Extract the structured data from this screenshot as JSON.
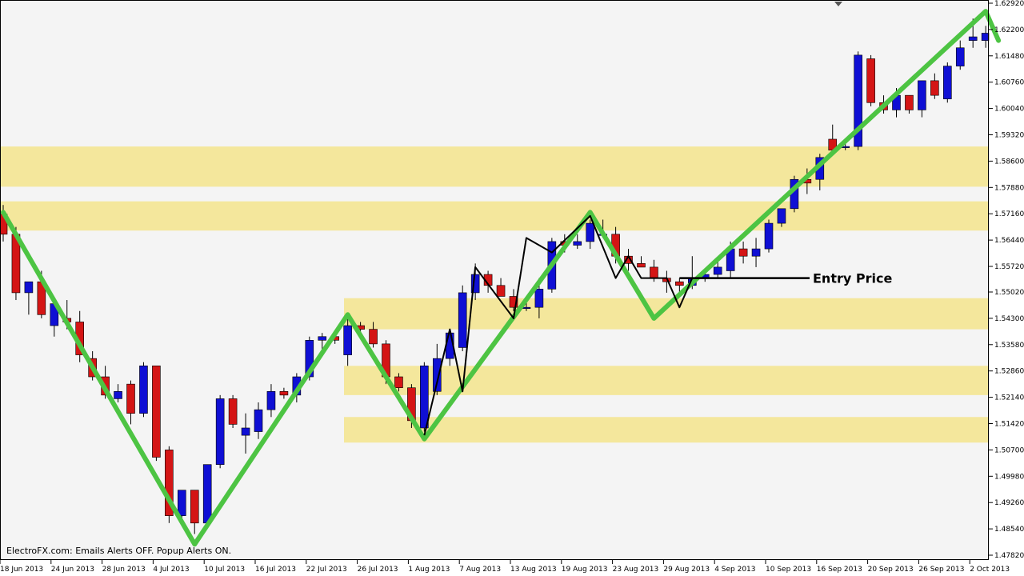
{
  "footer_text": "ElectroFX.com:  Emails Alerts OFF.  Popup Alerts ON.",
  "colors": {
    "bull": "#0f0fd4",
    "bear": "#d41515",
    "zigzag": "#4dc443",
    "zone": "#f4e79c",
    "background": "#f4f4f4"
  },
  "chart_data": {
    "type": "candlestick",
    "title": "",
    "ylim": [
      1.4782,
      1.6292
    ],
    "price_ticks": [
      "1.62920",
      "1.62200",
      "1.61480",
      "1.60760",
      "1.60040",
      "1.59320",
      "1.58600",
      "1.57880",
      "1.57160",
      "1.56440",
      "1.55720",
      "1.55020",
      "1.54300",
      "1.53580",
      "1.52860",
      "1.52140",
      "1.51420",
      "1.50700",
      "1.49980",
      "1.49260",
      "1.48540",
      "1.47820"
    ],
    "date_ticks": [
      {
        "label": "18 Jun 2013",
        "i": 0
      },
      {
        "label": "24 Jun 2013",
        "i": 4
      },
      {
        "label": "28 Jun 2013",
        "i": 8
      },
      {
        "label": "4 Jul 2013",
        "i": 12
      },
      {
        "label": "10 Jul 2013",
        "i": 16
      },
      {
        "label": "16 Jul 2013",
        "i": 20
      },
      {
        "label": "22 Jul 2013",
        "i": 24
      },
      {
        "label": "26 Jul 2013",
        "i": 28
      },
      {
        "label": "1 Aug 2013",
        "i": 32
      },
      {
        "label": "7 Aug 2013",
        "i": 36
      },
      {
        "label": "13 Aug 2013",
        "i": 40
      },
      {
        "label": "19 Aug 2013",
        "i": 44
      },
      {
        "label": "23 Aug 2013",
        "i": 48
      },
      {
        "label": "29 Aug 2013",
        "i": 52
      },
      {
        "label": "4 Sep 2013",
        "i": 56
      },
      {
        "label": "10 Sep 2013",
        "i": 60
      },
      {
        "label": "16 Sep 2013",
        "i": 64
      },
      {
        "label": "20 Sep 2013",
        "i": 68
      },
      {
        "label": "26 Sep 2013",
        "i": 72
      },
      {
        "label": "2 Oct 2013",
        "i": 76
      }
    ],
    "candles": [
      [
        1.5715,
        1.574,
        1.564,
        1.566
      ],
      [
        1.566,
        1.568,
        1.548,
        1.55
      ],
      [
        1.55,
        1.553,
        1.544,
        1.553
      ],
      [
        1.553,
        1.556,
        1.543,
        1.544
      ],
      [
        1.541,
        1.547,
        1.538,
        1.547
      ],
      [
        1.543,
        1.548,
        1.54,
        1.542
      ],
      [
        1.542,
        1.545,
        1.531,
        1.533
      ],
      [
        1.532,
        1.534,
        1.526,
        1.527
      ],
      [
        1.527,
        1.53,
        1.521,
        1.522
      ],
      [
        1.521,
        1.525,
        1.52,
        1.523
      ],
      [
        1.525,
        1.526,
        1.514,
        1.517
      ],
      [
        1.517,
        1.531,
        1.516,
        1.53
      ],
      [
        1.53,
        1.53,
        1.504,
        1.505
      ],
      [
        1.507,
        1.508,
        1.487,
        1.489
      ],
      [
        1.489,
        1.495,
        1.487,
        1.496
      ],
      [
        1.496,
        1.496,
        1.484,
        1.487
      ],
      [
        1.487,
        1.503,
        1.486,
        1.503
      ],
      [
        1.503,
        1.522,
        1.502,
        1.521
      ],
      [
        1.521,
        1.522,
        1.513,
        1.514
      ],
      [
        1.511,
        1.517,
        1.506,
        1.513
      ],
      [
        1.512,
        1.52,
        1.51,
        1.518
      ],
      [
        1.518,
        1.525,
        1.516,
        1.523
      ],
      [
        1.523,
        1.524,
        1.521,
        1.522
      ],
      [
        1.522,
        1.528,
        1.52,
        1.527
      ],
      [
        1.527,
        1.538,
        1.526,
        1.537
      ],
      [
        1.537,
        1.539,
        1.534,
        1.538
      ],
      [
        1.538,
        1.539,
        1.536,
        1.537
      ],
      [
        1.533,
        1.543,
        1.53,
        1.541
      ],
      [
        1.541,
        1.542,
        1.538,
        1.54
      ],
      [
        1.54,
        1.542,
        1.535,
        1.536
      ],
      [
        1.536,
        1.537,
        1.525,
        1.527
      ],
      [
        1.527,
        1.528,
        1.523,
        1.524
      ],
      [
        1.524,
        1.525,
        1.513,
        1.515
      ],
      [
        1.513,
        1.531,
        1.512,
        1.53
      ],
      [
        1.523,
        1.536,
        1.522,
        1.532
      ],
      [
        1.532,
        1.54,
        1.53,
        1.539
      ],
      [
        1.535,
        1.552,
        1.534,
        1.55
      ],
      [
        1.55,
        1.558,
        1.548,
        1.555
      ],
      [
        1.555,
        1.556,
        1.55,
        1.552
      ],
      [
        1.552,
        1.554,
        1.549,
        1.549
      ],
      [
        1.549,
        1.551,
        1.545,
        1.546
      ],
      [
        1.546,
        1.548,
        1.545,
        1.546
      ],
      [
        1.546,
        1.554,
        1.543,
        1.551
      ],
      [
        1.551,
        1.565,
        1.55,
        1.564
      ],
      [
        1.564,
        1.566,
        1.561,
        1.563
      ],
      [
        1.563,
        1.566,
        1.562,
        1.564
      ],
      [
        1.564,
        1.57,
        1.562,
        1.569
      ],
      [
        1.566,
        1.57,
        1.565,
        1.566
      ],
      [
        1.566,
        1.568,
        1.558,
        1.56
      ],
      [
        1.56,
        1.562,
        1.556,
        1.558
      ],
      [
        1.558,
        1.56,
        1.557,
        1.557
      ],
      [
        1.557,
        1.559,
        1.553,
        1.554
      ],
      [
        1.554,
        1.556,
        1.55,
        1.553
      ],
      [
        1.553,
        1.554,
        1.55,
        1.552
      ],
      [
        1.552,
        1.56,
        1.551,
        1.554
      ],
      [
        1.554,
        1.556,
        1.553,
        1.555
      ],
      [
        1.555,
        1.559,
        1.554,
        1.557
      ],
      [
        1.556,
        1.564,
        1.554,
        1.562
      ],
      [
        1.562,
        1.564,
        1.558,
        1.56
      ],
      [
        1.56,
        1.565,
        1.557,
        1.562
      ],
      [
        1.562,
        1.57,
        1.561,
        1.569
      ],
      [
        1.569,
        1.573,
        1.568,
        1.573
      ],
      [
        1.573,
        1.582,
        1.572,
        1.581
      ],
      [
        1.581,
        1.584,
        1.577,
        1.58
      ],
      [
        1.581,
        1.588,
        1.578,
        1.587
      ],
      [
        1.592,
        1.596,
        1.589,
        1.589
      ],
      [
        1.59,
        1.592,
        1.589,
        1.59
      ],
      [
        1.59,
        1.616,
        1.589,
        1.615
      ],
      [
        1.614,
        1.615,
        1.601,
        1.602
      ],
      [
        1.602,
        1.604,
        1.599,
        1.6
      ],
      [
        1.6,
        1.606,
        1.598,
        1.604
      ],
      [
        1.604,
        1.604,
        1.599,
        1.6
      ],
      [
        1.6,
        1.608,
        1.598,
        1.608
      ],
      [
        1.608,
        1.61,
        1.603,
        1.604
      ],
      [
        1.603,
        1.613,
        1.602,
        1.612
      ],
      [
        1.612,
        1.619,
        1.611,
        1.617
      ],
      [
        1.619,
        1.625,
        1.617,
        1.62
      ],
      [
        1.619,
        1.623,
        1.617,
        1.621
      ],
      [
        1.622,
        1.625,
        1.617,
        1.62
      ]
    ],
    "zones": [
      [
        1.579,
        1.59
      ],
      [
        1.567,
        1.575
      ],
      [
        1.54,
        1.5485
      ],
      [
        1.522,
        1.53
      ],
      [
        1.509,
        1.516
      ]
    ],
    "zigzag_main": [
      [
        0,
        1.572
      ],
      [
        15,
        1.4812
      ],
      [
        27,
        1.544
      ],
      [
        33,
        1.51
      ],
      [
        46,
        1.572
      ],
      [
        51,
        1.543
      ],
      [
        77,
        1.627
      ],
      [
        78,
        1.619
      ]
    ],
    "zigzag_small": [
      [
        33,
        1.511
      ],
      [
        35,
        1.54
      ],
      [
        36,
        1.523
      ],
      [
        37,
        1.557
      ],
      [
        40,
        1.543
      ],
      [
        41,
        1.565
      ],
      [
        43,
        1.561
      ],
      [
        46,
        1.571
      ],
      [
        48,
        1.554
      ],
      [
        49,
        1.56
      ],
      [
        50,
        1.554
      ],
      [
        52,
        1.554
      ],
      [
        53,
        1.546
      ],
      [
        54,
        1.554
      ]
    ],
    "annotation": {
      "label": "Entry Price",
      "price": 1.554
    }
  }
}
